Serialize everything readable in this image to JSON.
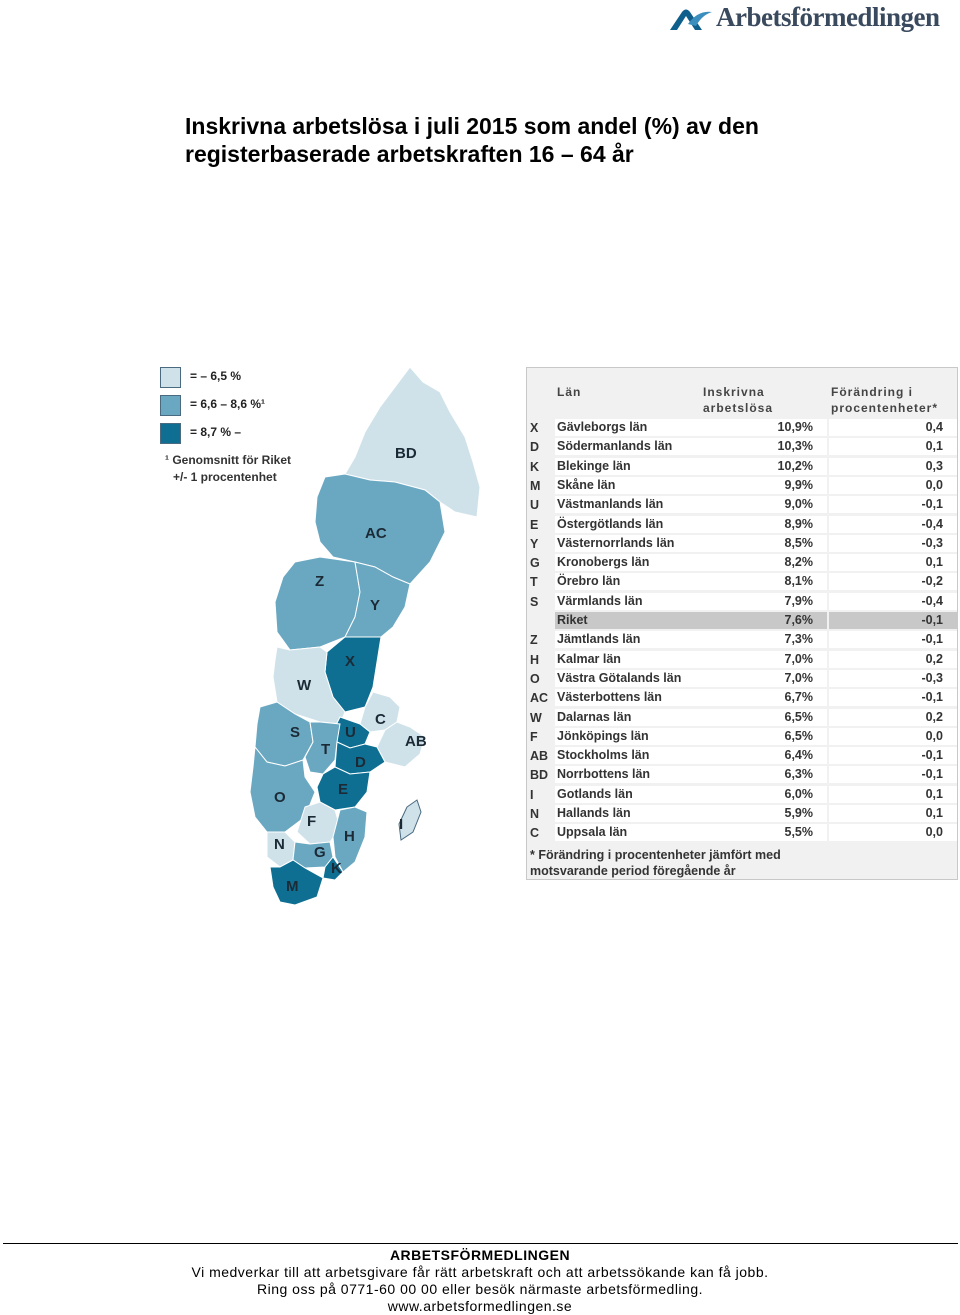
{
  "header": {
    "brand": "Arbetsförmedlingen",
    "logo_icon": "arbetsformedlingen-swoosh-icon",
    "brand_color": "#0e5f8c"
  },
  "title_lines": [
    "Inskrivna arbetslösa i juli 2015 som andel (%) av den",
    "registerbaserade arbetskraften 16 – 64 år"
  ],
  "legend": {
    "items": [
      {
        "label": "= – 6,5 %",
        "color": "#cfe2ea"
      },
      {
        "label": "= 6,6 – 8,6 %¹",
        "color": "#6aa8c2"
      },
      {
        "label": "= 8,7 % –",
        "color": "#0e6f92"
      }
    ],
    "note_lines": [
      "¹ Genomsnitt för Riket",
      "+/- 1 procentenhet"
    ]
  },
  "map_regions": [
    "BD",
    "AC",
    "Z",
    "Y",
    "X",
    "W",
    "C",
    "AB",
    "S",
    "U",
    "T",
    "D",
    "E",
    "O",
    "F",
    "I",
    "H",
    "N",
    "G",
    "K",
    "M"
  ],
  "chart_data": {
    "type": "table",
    "columns": [
      "Län",
      "Inskrivna arbetslösa",
      "Förändring i procentenheter*"
    ],
    "header_lines": {
      "lan": [
        "",
        "Län"
      ],
      "inskrivna": [
        "Inskrivna",
        "arbetslösa"
      ],
      "forandring": [
        "Förändring i",
        "procentenheter*"
      ]
    },
    "rows": [
      {
        "code": "X",
        "name": "Gävleborgs län",
        "value": "10,9%",
        "change": "0,4"
      },
      {
        "code": "D",
        "name": "Södermanlands län",
        "value": "10,3%",
        "change": "0,1"
      },
      {
        "code": "K",
        "name": "Blekinge län",
        "value": "10,2%",
        "change": "0,3"
      },
      {
        "code": "M",
        "name": "Skåne län",
        "value": "9,9%",
        "change": "0,0"
      },
      {
        "code": "U",
        "name": "Västmanlands län",
        "value": "9,0%",
        "change": "-0,1"
      },
      {
        "code": "E",
        "name": "Östergötlands län",
        "value": "8,9%",
        "change": "-0,4"
      },
      {
        "code": "Y",
        "name": "Västernorrlands län",
        "value": "8,5%",
        "change": "-0,3"
      },
      {
        "code": "G",
        "name": "Kronobergs län",
        "value": "8,2%",
        "change": "0,1"
      },
      {
        "code": "T",
        "name": "Örebro län",
        "value": "8,1%",
        "change": "-0,2"
      },
      {
        "code": "S",
        "name": "Värmlands län",
        "value": "7,9%",
        "change": "-0,4"
      },
      {
        "code": "",
        "name": "Riket",
        "value": "7,6%",
        "change": "-0,1",
        "highlight": true
      },
      {
        "code": "Z",
        "name": "Jämtlands län",
        "value": "7,3%",
        "change": "-0,1"
      },
      {
        "code": "H",
        "name": "Kalmar län",
        "value": "7,0%",
        "change": "0,2"
      },
      {
        "code": "O",
        "name": "Västra Götalands län",
        "value": "7,0%",
        "change": "-0,3"
      },
      {
        "code": "AC",
        "name": "Västerbottens län",
        "value": "6,7%",
        "change": "-0,1"
      },
      {
        "code": "W",
        "name": "Dalarnas län",
        "value": "6,5%",
        "change": "0,2"
      },
      {
        "code": "F",
        "name": "Jönköpings län",
        "value": "6,5%",
        "change": "0,0"
      },
      {
        "code": "AB",
        "name": "Stockholms län",
        "value": "6,4%",
        "change": "-0,1"
      },
      {
        "code": "BD",
        "name": "Norrbottens län",
        "value": "6,3%",
        "change": "-0,1"
      },
      {
        "code": "I",
        "name": "Gotlands län",
        "value": "6,0%",
        "change": "0,1"
      },
      {
        "code": "N",
        "name": "Hallands län",
        "value": "5,9%",
        "change": "0,1"
      },
      {
        "code": "C",
        "name": "Uppsala län",
        "value": "5,5%",
        "change": "0,0"
      }
    ],
    "footnote_lines": [
      "* Förändring i procentenheter jämfört med",
      "motsvarande period föregående år"
    ]
  },
  "footer": {
    "org": "ARBETSFÖRMEDLINGEN",
    "tagline": "Vi medverkar till att arbetsgivare får rätt arbetskraft och att arbetssökande kan få jobb.",
    "contact": "Ring oss på 0771-60 00 00 eller besök närmaste arbetsförmedling.",
    "url": "www.arbetsformedlingen.se"
  }
}
